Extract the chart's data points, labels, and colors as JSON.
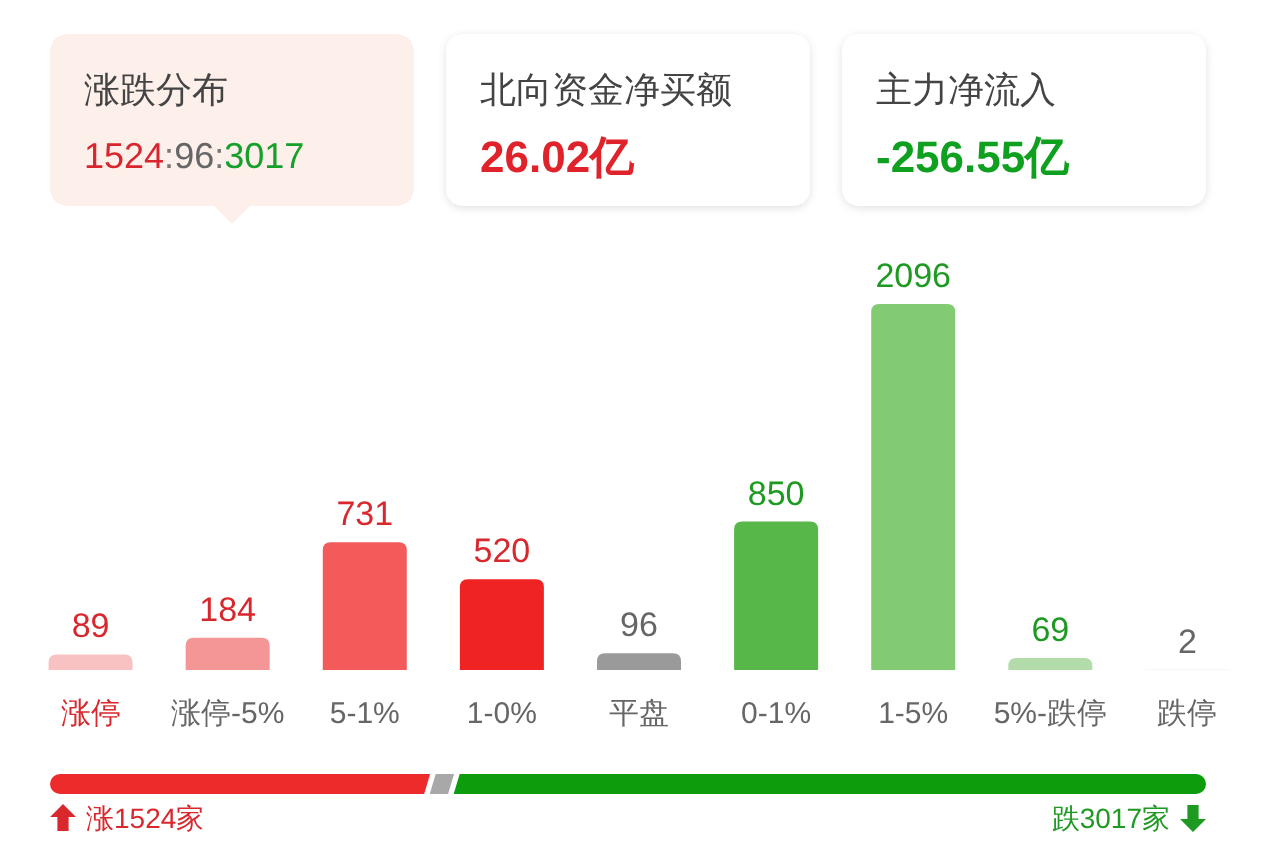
{
  "chart_data": [
    {
      "type": "other",
      "title": "涨跌分布",
      "annotations": [
        "1524:96:3017"
      ],
      "colors": [
        "#d9262e",
        "#666666",
        "#15a02a"
      ],
      "color": "#fdf0eb"
    },
    {
      "type": "other",
      "title": "北向资金净买额",
      "annotations": [
        "26.02亿"
      ],
      "colors": [
        "#e0232b"
      ],
      "color": "#ffffff"
    },
    {
      "type": "other",
      "title": "主力净流入",
      "annotations": [
        "-256.55亿"
      ],
      "colors": [
        "#10a020"
      ],
      "color": "#ffffff"
    },
    {
      "type": "bar",
      "categories": [
        "涨停",
        "涨停-5%",
        "5-1%",
        "1-0%",
        "平盘",
        "0-1%",
        "1-5%",
        "5%-跌停",
        "跌停"
      ],
      "values": [
        89,
        184,
        731,
        520,
        96,
        850,
        2096,
        69,
        2
      ],
      "colors": [
        "#f8c2c2",
        "#f59696",
        "#f35b5b",
        "#ef2323",
        "#9a9a9a",
        "#57b748",
        "#82cb72",
        "#b3dcaa",
        "#cfe9c9"
      ],
      "data_labels": true
    },
    {
      "type": "bar",
      "orientation": "horizontal",
      "stacked": true,
      "categories": [
        null
      ],
      "series": [
        {
          "color": "#ee2b2b",
          "values": [
            1524
          ],
          "value_labels": [
            "涨1524家"
          ]
        },
        {
          "color": "#a8a8a8",
          "values": [
            96
          ],
          "value_labels": [
            null
          ]
        },
        {
          "color": "#0c9c0c",
          "values": [
            3017
          ],
          "value_labels": [
            "跌3017家"
          ]
        }
      ]
    }
  ]
}
